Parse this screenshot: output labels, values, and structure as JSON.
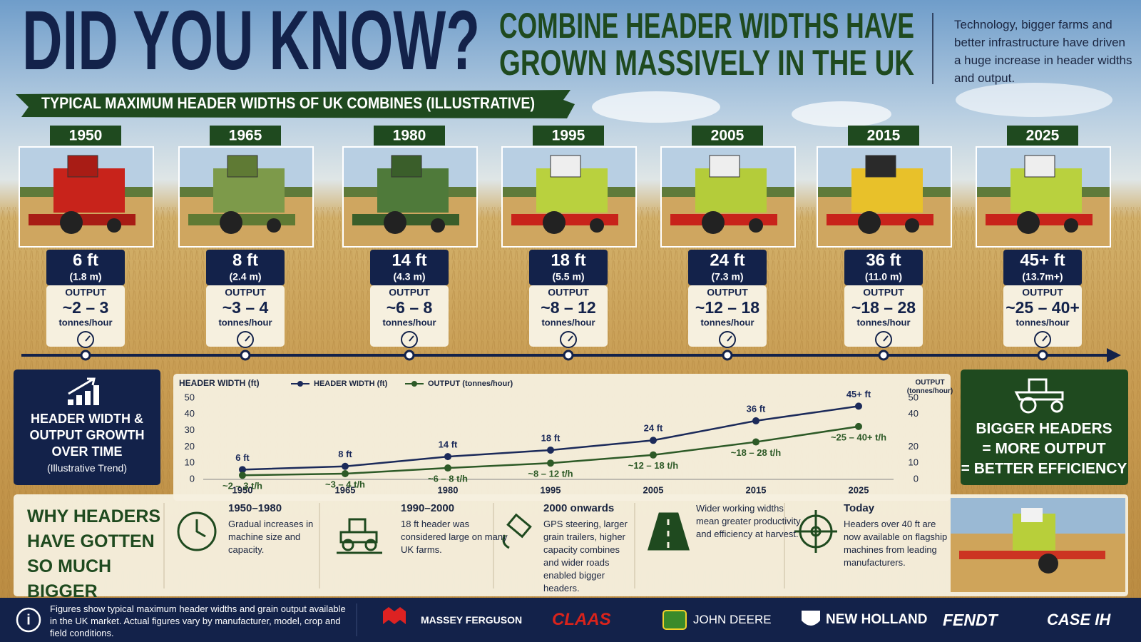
{
  "header": {
    "title": "DID YOU KNOW?",
    "headline": [
      "COMBINE HEADER WIDTHS HAVE",
      "GROWN MASSIVELY IN THE UK"
    ],
    "intro": "Technology, bigger farms and better infrastructure have driven a huge increase in header widths and output."
  },
  "banner": "TYPICAL MAXIMUM HEADER WIDTHS OF UK COMBINES (ILLUSTRATIVE)",
  "timeline": [
    {
      "year": "1950",
      "width": "6 ft",
      "metric": "(1.8 m)",
      "output_label": "OUTPUT",
      "output": "~2 – 3",
      "unit": "tonnes/hour"
    },
    {
      "year": "1965",
      "width": "8 ft",
      "metric": "(2.4 m)",
      "output_label": "OUTPUT",
      "output": "~3 – 4",
      "unit": "tonnes/hour"
    },
    {
      "year": "1980",
      "width": "14 ft",
      "metric": "(4.3 m)",
      "output_label": "OUTPUT",
      "output": "~6 – 8",
      "unit": "tonnes/hour"
    },
    {
      "year": "1995",
      "width": "18 ft",
      "metric": "(5.5 m)",
      "output_label": "OUTPUT",
      "output": "~8 – 12",
      "unit": "tonnes/hour"
    },
    {
      "year": "2005",
      "width": "24 ft",
      "metric": "(7.3 m)",
      "output_label": "OUTPUT",
      "output": "~12 – 18",
      "unit": "tonnes/hour"
    },
    {
      "year": "2015",
      "width": "36 ft",
      "metric": "(11.0 m)",
      "output_label": "OUTPUT",
      "output": "~18 – 28",
      "unit": "tonnes/hour"
    },
    {
      "year": "2025",
      "width": "45+ ft",
      "metric": "(13.7m+)",
      "output_label": "OUTPUT",
      "output": "~25 – 40+",
      "unit": "tonnes/hour"
    }
  ],
  "trend_box": {
    "title": "HEADER WIDTH & OUTPUT GROWTH OVER TIME",
    "subtitle": "(Illustrative Trend)"
  },
  "chart_data": {
    "type": "line",
    "ylabel": "HEADER WIDTH (ft)",
    "y2label": "OUTPUT (tonnes/hour)",
    "categories": [
      "1950",
      "1965",
      "1980",
      "1995",
      "2005",
      "2015",
      "2025"
    ],
    "series": [
      {
        "name": "HEADER WIDTH (ft)",
        "color": "#1b2a5a",
        "values": [
          6,
          8,
          14,
          18,
          24,
          36,
          45
        ],
        "value_labels": [
          "6 ft",
          "8 ft",
          "14 ft",
          "18 ft",
          "24 ft",
          "36 ft",
          "45+ ft"
        ]
      },
      {
        "name": "OUTPUT (tonnes/hour)",
        "color": "#2d5a27",
        "axis": "y2",
        "values": [
          2.5,
          3.5,
          7,
          10,
          15,
          23,
          32.5
        ],
        "value_labels": [
          "~2 – 3 t/h",
          "~3 – 4 t/h",
          "~6 – 8 t/h",
          "~8 – 12 t/h",
          "~12 – 18 t/h",
          "~18 – 28 t/h",
          "~25 – 40+ t/h"
        ]
      }
    ],
    "ylim": [
      0,
      50
    ],
    "yticks": [
      0,
      10,
      20,
      30,
      40,
      50
    ],
    "y2lim": [
      0,
      50
    ],
    "y2ticks": [
      0,
      10,
      20,
      40,
      50
    ],
    "grid": false
  },
  "callout": [
    "BIGGER HEADERS",
    "= MORE OUTPUT",
    "= BETTER EFFICIENCY"
  ],
  "reasons": {
    "title": "WHY HEADERS HAVE GOTTEN SO MUCH BIGGER",
    "items": [
      {
        "title": "1950–1980",
        "text": "Gradual increases in machine size and capacity."
      },
      {
        "title": "1990–2000",
        "text": "18 ft header was considered large on many UK farms."
      },
      {
        "title": "2000 onwards",
        "text": "GPS steering, larger grain trailers, higher capacity combines and wider roads enabled bigger headers."
      },
      {
        "text": "Wider working widths mean greater productivity and efficiency at harvest."
      },
      {
        "title": "Today",
        "text": "Headers over 40 ft are now available on flagship machines from leading manufacturers."
      }
    ]
  },
  "footer": {
    "note": "Figures show typical maximum header widths and grain output available in the UK market. Actual figures vary by manufacturer, model, crop and field conditions.",
    "brands": [
      "MASSEY FERGUSON",
      "CLAAS",
      "JOHN DEERE",
      "NEW HOLLAND",
      "FENDT",
      "CASE IH"
    ]
  }
}
